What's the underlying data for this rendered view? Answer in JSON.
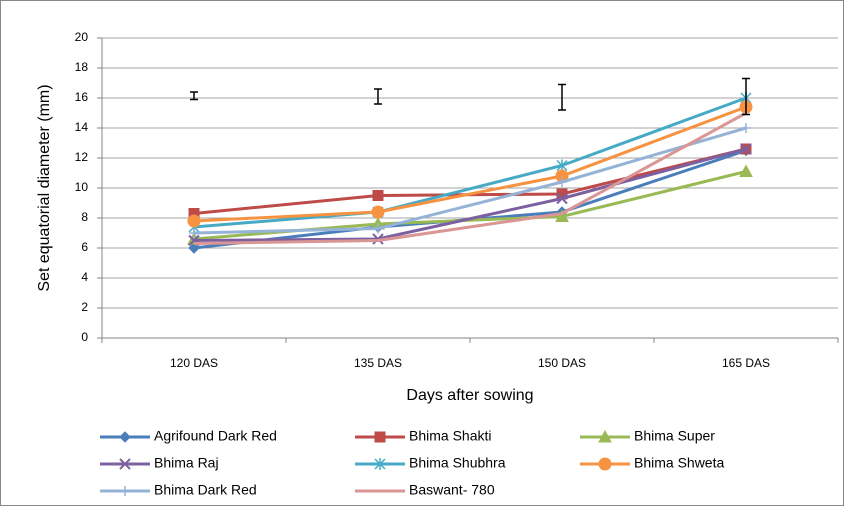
{
  "chart_data": {
    "type": "line",
    "x_label": "Days after sowing",
    "y_label": "Set equatorial diameter (mm)",
    "categories": [
      "120 DAS",
      "135 DAS",
      "150 DAS",
      "165 DAS"
    ],
    "ylim": [
      0,
      20
    ],
    "yticks": [
      0,
      2,
      4,
      6,
      8,
      10,
      12,
      14,
      16,
      18,
      20
    ],
    "grid": true,
    "legend": "bottom",
    "series": [
      {
        "name": "Agrifound Dark Red",
        "color": "#4a7ebb",
        "marker": "diamond",
        "values": [
          6.0,
          7.4,
          8.4,
          12.5
        ]
      },
      {
        "name": "Bhima Shakti",
        "color": "#be4b48",
        "marker": "square",
        "values": [
          8.3,
          9.5,
          9.6,
          12.6
        ]
      },
      {
        "name": "Bhima Super",
        "color": "#98b954",
        "marker": "triangle",
        "values": [
          6.6,
          7.6,
          8.1,
          11.1
        ]
      },
      {
        "name": "Bhima Raj",
        "color": "#7d60a0",
        "marker": "x",
        "values": [
          6.5,
          6.6,
          9.3,
          12.6
        ]
      },
      {
        "name": "Bhima Shubhra",
        "color": "#46aac5",
        "marker": "star",
        "values": [
          7.4,
          8.4,
          11.5,
          16.0
        ]
      },
      {
        "name": "Bhima Shweta",
        "color": "#f69240",
        "marker": "circle",
        "values": [
          7.8,
          8.4,
          10.8,
          15.4
        ]
      },
      {
        "name": "Bhima Dark Red",
        "color": "#95b3d7",
        "marker": "plus",
        "values": [
          7.0,
          7.3,
          10.4,
          14.0
        ]
      },
      {
        "name": "Baswant- 780",
        "color": "#d99694",
        "marker": "none",
        "values": [
          6.3,
          6.5,
          8.3,
          15.0
        ]
      }
    ],
    "error_bars": {
      "color": "#000000",
      "values": [
        16.15,
        16.1,
        16.05,
        16.1
      ],
      "errors": [
        0.25,
        0.5,
        0.85,
        1.2
      ]
    }
  }
}
